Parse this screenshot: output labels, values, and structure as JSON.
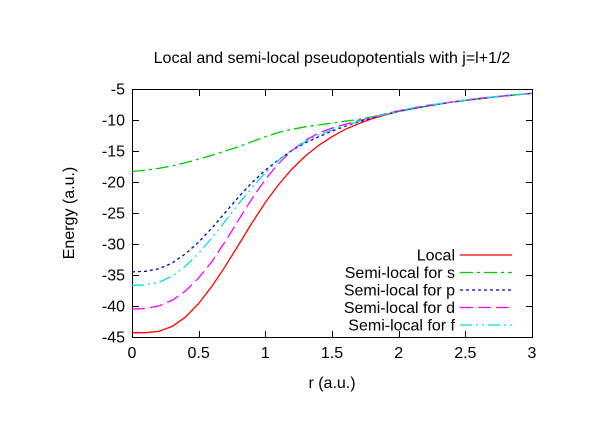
{
  "chart_data": {
    "type": "line",
    "title": "Local and semi-local pseudopotentials with j=l+1/2",
    "xlabel": "r (a.u.)",
    "ylabel": "Energy (a.u.)",
    "xlim": [
      0,
      3
    ],
    "ylim": [
      -45,
      -5
    ],
    "xticks": [
      0,
      0.5,
      1,
      1.5,
      2,
      2.5,
      3
    ],
    "xtick_labels": [
      "0",
      "0.5",
      "1",
      "1.5",
      "2",
      "2.5",
      "3"
    ],
    "yticks": [
      -45,
      -40,
      -35,
      -30,
      -25,
      -20,
      -15,
      -10,
      -5
    ],
    "ytick_labels": [
      "-45",
      "-40",
      "-35",
      "-30",
      "-25",
      "-20",
      "-15",
      "-10",
      "-5"
    ],
    "grid": false,
    "legend_position": "inside bottom-right",
    "x": [
      0,
      0.1,
      0.2,
      0.3,
      0.4,
      0.5,
      0.6,
      0.7,
      0.8,
      0.9,
      1.0,
      1.1,
      1.2,
      1.3,
      1.4,
      1.5,
      1.6,
      1.7,
      1.8,
      1.9,
      2.0,
      2.2,
      2.4,
      2.6,
      2.8,
      3.0
    ],
    "series": [
      {
        "name": "Local",
        "color": "#ff0000",
        "dash": "solid",
        "y": [
          -44.3,
          -44.3,
          -44.1,
          -43.3,
          -41.8,
          -39.6,
          -36.8,
          -33.6,
          -30.1,
          -26.6,
          -23.3,
          -20.4,
          -17.9,
          -15.8,
          -14.1,
          -12.7,
          -11.5,
          -10.6,
          -9.8,
          -9.2,
          -8.6,
          -7.8,
          -7.1,
          -6.6,
          -6.1,
          -5.7
        ]
      },
      {
        "name": "Semi-local for s",
        "color": "#00cc00",
        "dash": "dash-dot",
        "y": [
          -18.3,
          -18.1,
          -17.8,
          -17.4,
          -16.9,
          -16.3,
          -15.7,
          -15.0,
          -14.3,
          -13.5,
          -12.7,
          -12.0,
          -11.5,
          -11.1,
          -10.8,
          -10.5,
          -10.2,
          -9.9,
          -9.5,
          -9.1,
          -8.6,
          -7.8,
          -7.1,
          -6.5,
          -6.1,
          -5.7
        ]
      },
      {
        "name": "Semi-local for p",
        "color": "#0000cc",
        "dash": "dotted",
        "y": [
          -34.5,
          -34.4,
          -34.0,
          -33.1,
          -31.6,
          -29.7,
          -27.4,
          -24.9,
          -22.4,
          -20.1,
          -18.1,
          -16.4,
          -14.9,
          -13.7,
          -12.7,
          -11.8,
          -11.0,
          -10.3,
          -9.7,
          -9.1,
          -8.6,
          -7.8,
          -7.1,
          -6.6,
          -6.1,
          -5.7
        ]
      },
      {
        "name": "Semi-local for d",
        "color": "#ff00ff",
        "dash": "long-dash",
        "y": [
          -40.5,
          -40.4,
          -40.0,
          -39.1,
          -37.6,
          -35.5,
          -32.8,
          -29.6,
          -26.1,
          -22.7,
          -19.6,
          -17.0,
          -14.9,
          -13.3,
          -12.1,
          -11.3,
          -10.7,
          -10.1,
          -9.6,
          -9.0,
          -8.5,
          -7.7,
          -7.1,
          -6.5,
          -6.1,
          -5.7
        ]
      },
      {
        "name": "Semi-local for f",
        "color": "#00e0e0",
        "dash": "dash-dot-dot",
        "y": [
          -36.7,
          -36.6,
          -36.2,
          -35.2,
          -33.6,
          -31.5,
          -29.0,
          -26.3,
          -23.5,
          -20.9,
          -18.5,
          -16.5,
          -14.8,
          -13.5,
          -12.4,
          -11.6,
          -10.9,
          -10.2,
          -9.6,
          -9.1,
          -8.5,
          -7.7,
          -7.1,
          -6.5,
          -6.1,
          -5.7
        ]
      }
    ]
  }
}
